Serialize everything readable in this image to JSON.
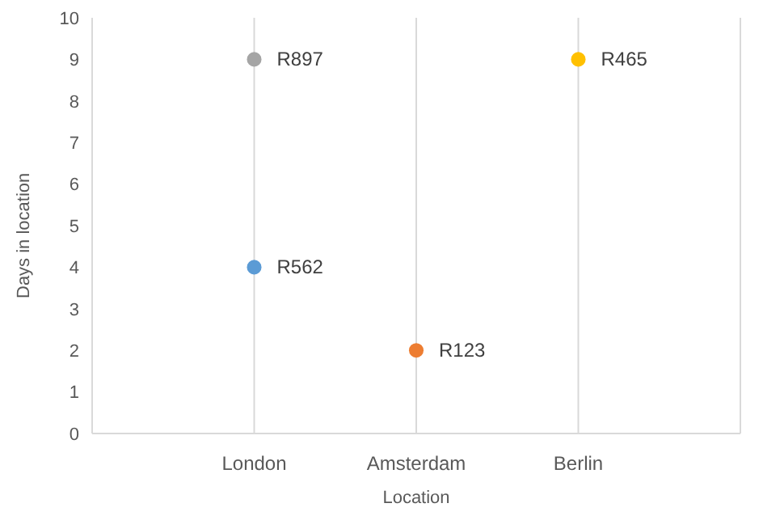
{
  "chart_data": {
    "type": "scatter",
    "xlabel": "Location",
    "ylabel": "Days in location",
    "categories": [
      "London",
      "Amsterdam",
      "Berlin"
    ],
    "series": [
      {
        "name": "R897",
        "color": "#a5a5a5",
        "x": [
          "London"
        ],
        "values": [
          9
        ]
      },
      {
        "name": "R562",
        "color": "#5b9bd5",
        "x": [
          "London"
        ],
        "values": [
          4
        ]
      },
      {
        "name": "R123",
        "color": "#ed7d31",
        "x": [
          "Amsterdam"
        ],
        "values": [
          2
        ]
      },
      {
        "name": "R465",
        "color": "#ffc000",
        "x": [
          "Berlin"
        ],
        "values": [
          9
        ]
      }
    ],
    "ylim": [
      0,
      10
    ],
    "yticks": [
      0,
      1,
      2,
      3,
      4,
      5,
      6,
      7,
      8,
      9,
      10
    ],
    "grid": "x",
    "marker": "circle",
    "legend": false
  }
}
